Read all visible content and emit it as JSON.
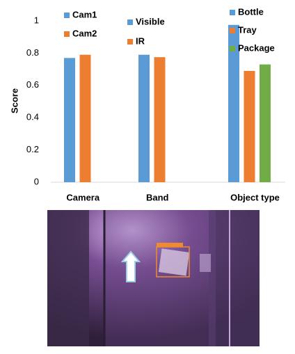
{
  "chart_data": {
    "type": "bar",
    "y_label": "Score",
    "ylim": [
      0,
      1
    ],
    "yticks": [
      0,
      0.2,
      0.4,
      0.6,
      0.8,
      1
    ],
    "groups": [
      {
        "label": "Camera",
        "series": [
          {
            "name": "Cam1",
            "color": "#5b9bd5",
            "value": 0.77
          },
          {
            "name": "Cam2",
            "color": "#ed7d31",
            "value": 0.79
          }
        ]
      },
      {
        "label": "Band",
        "series": [
          {
            "name": "Visible",
            "color": "#5b9bd5",
            "value": 0.79
          },
          {
            "name": "IR",
            "color": "#ed7d31",
            "value": 0.775
          }
        ]
      },
      {
        "label": "Object type",
        "series": [
          {
            "name": "Bottle",
            "color": "#5b9bd5",
            "value": 0.975
          },
          {
            "name": "Tray",
            "color": "#ed7d31",
            "value": 0.69
          },
          {
            "name": "Package",
            "color": "#70ad47",
            "value": 0.73
          }
        ]
      }
    ]
  }
}
